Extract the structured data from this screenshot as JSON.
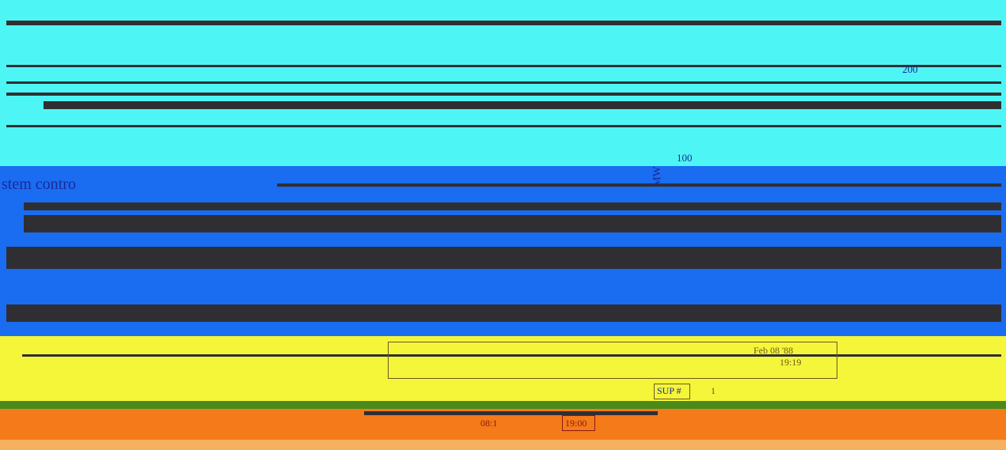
{
  "panel": {
    "caption": "stem contro",
    "axis_top": "200",
    "axis_mid": "100",
    "unit": "MW"
  },
  "status": {
    "date": "Feb 08 '88",
    "time": "19:19",
    "sup_label": "SUP #",
    "sup_value": "1"
  },
  "timeline": {
    "start": "08:1",
    "end": "19:00"
  }
}
